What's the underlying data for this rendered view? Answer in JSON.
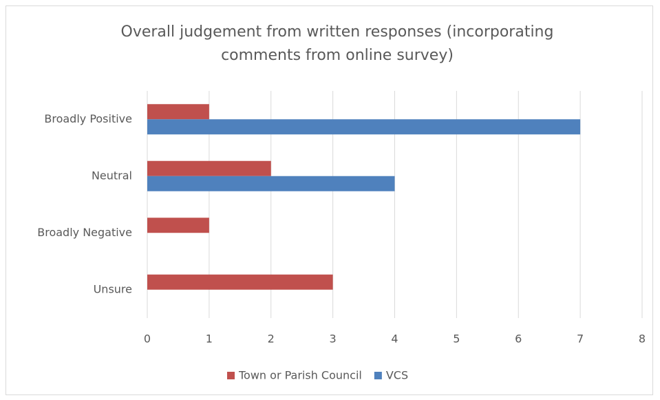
{
  "chart_data": {
    "type": "hbar",
    "title": "Overall judgement from written responses (incorporating comments from online survey)",
    "categories": [
      "Broadly Positive",
      "Neutral",
      "Broadly Negative",
      "Unsure"
    ],
    "series": [
      {
        "name": "Town or Parish Council",
        "color": "#c0504d",
        "values": [
          1,
          2,
          1,
          3
        ]
      },
      {
        "name": "VCS",
        "color": "#4f81bd",
        "values": [
          7,
          4,
          0,
          0
        ]
      }
    ],
    "xlim": [
      0,
      8
    ],
    "xticks": [
      0,
      1,
      2,
      3,
      4,
      5,
      6,
      7,
      8
    ],
    "grid": true,
    "legend": "bottom"
  }
}
